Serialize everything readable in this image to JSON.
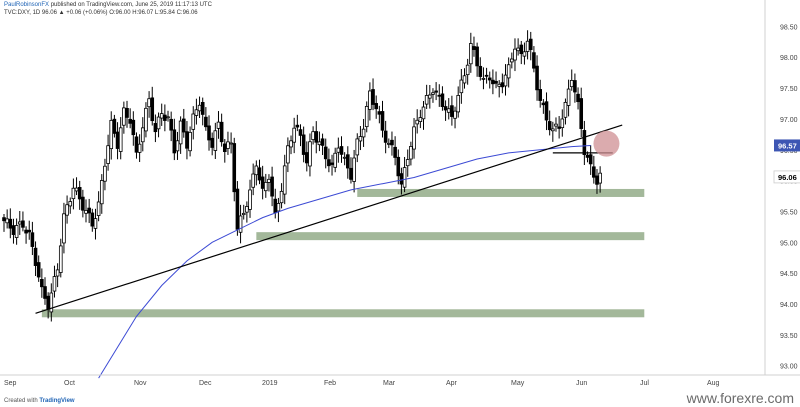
{
  "header": {
    "author": "PaulRobinsonFX",
    "published": "published on TradingView.com, June 25, 2019 11:17:13 UTC",
    "symbol_line": "TVC:DXY, 1D 96.06 ▲ +0.06 (+0.06%) O:96.00 H:96.07 L:95.84 C:96.06"
  },
  "footer": {
    "created_with": "Created with",
    "brand": "TradingView"
  },
  "watermark": "www.forexre.com",
  "colors": {
    "candle": "#000000",
    "zone": "#99b08f",
    "ma": "#3c4ad4",
    "trendline": "#000000",
    "circle": "#cf8f93",
    "last_label_bg": "#3d56b3",
    "last_label_text": "#ffffff"
  },
  "chart_data": {
    "type": "candlestick",
    "symbol": "TVC:DXY",
    "timeframe": "1D",
    "ylim": [
      92.85,
      98.7
    ],
    "yticks": [
      93.0,
      93.5,
      94.0,
      94.5,
      95.0,
      95.5,
      96.0,
      96.5,
      97.0,
      97.5,
      98.0,
      98.5
    ],
    "xticks": [
      "Sep",
      "Oct",
      "Nov",
      "Dec",
      "2019",
      "Feb",
      "Mar",
      "Apr",
      "May",
      "Jun",
      "Jul",
      "Aug"
    ],
    "price_labels": [
      {
        "value": 96.57,
        "label": "96.57"
      },
      {
        "value": 96.06,
        "label": "96.06"
      }
    ],
    "close_path": [
      [
        0,
        95.35
      ],
      [
        3,
        95.2
      ],
      [
        6,
        95.3
      ],
      [
        8,
        95.1
      ],
      [
        10,
        94.7
      ],
      [
        12,
        94.2
      ],
      [
        14,
        94.0
      ],
      [
        15,
        94.15
      ],
      [
        17,
        94.6
      ],
      [
        19,
        95.4
      ],
      [
        22,
        95.9
      ],
      [
        25,
        95.6
      ],
      [
        28,
        95.3
      ],
      [
        30,
        95.6
      ],
      [
        32,
        96.3
      ],
      [
        34,
        96.9
      ],
      [
        36,
        96.6
      ],
      [
        38,
        97.1
      ],
      [
        40,
        97.0
      ],
      [
        42,
        96.4
      ],
      [
        44,
        96.9
      ],
      [
        46,
        97.3
      ],
      [
        48,
        96.8
      ],
      [
        50,
        97.1
      ],
      [
        52,
        97.0
      ],
      [
        54,
        96.5
      ],
      [
        56,
        96.9
      ],
      [
        58,
        96.6
      ],
      [
        60,
        97.0
      ],
      [
        62,
        97.3
      ],
      [
        64,
        96.8
      ],
      [
        66,
        96.6
      ],
      [
        68,
        96.9
      ],
      [
        70,
        96.5
      ],
      [
        72,
        96.6
      ],
      [
        74,
        95.2
      ],
      [
        76,
        95.5
      ],
      [
        78,
        95.8
      ],
      [
        80,
        96.3
      ],
      [
        82,
        95.8
      ],
      [
        84,
        96.1
      ],
      [
        86,
        95.4
      ],
      [
        88,
        95.9
      ],
      [
        90,
        96.5
      ],
      [
        92,
        96.9
      ],
      [
        94,
        96.7
      ],
      [
        96,
        96.3
      ],
      [
        98,
        96.8
      ],
      [
        100,
        96.6
      ],
      [
        102,
        96.4
      ],
      [
        104,
        96.2
      ],
      [
        106,
        96.6
      ],
      [
        108,
        96.3
      ],
      [
        110,
        96.1
      ],
      [
        112,
        96.6
      ],
      [
        114,
        96.9
      ],
      [
        116,
        97.4
      ],
      [
        118,
        97.2
      ],
      [
        120,
        96.8
      ],
      [
        122,
        96.6
      ],
      [
        124,
        96.4
      ],
      [
        126,
        95.9
      ],
      [
        128,
        96.4
      ],
      [
        130,
        96.8
      ],
      [
        132,
        97.1
      ],
      [
        134,
        97.3
      ],
      [
        136,
        97.5
      ],
      [
        138,
        97.3
      ],
      [
        140,
        97.2
      ],
      [
        142,
        97.0
      ],
      [
        144,
        97.4
      ],
      [
        146,
        97.7
      ],
      [
        148,
        98.2
      ],
      [
        150,
        97.9
      ],
      [
        152,
        97.6
      ],
      [
        154,
        97.7
      ],
      [
        156,
        97.5
      ],
      [
        158,
        97.6
      ],
      [
        160,
        97.8
      ],
      [
        162,
        98.2
      ],
      [
        164,
        98.0
      ],
      [
        166,
        98.3
      ],
      [
        168,
        97.8
      ],
      [
        170,
        97.3
      ],
      [
        172,
        97.0
      ],
      [
        174,
        96.8
      ],
      [
        176,
        96.9
      ],
      [
        178,
        97.2
      ],
      [
        180,
        97.7
      ],
      [
        182,
        97.2
      ],
      [
        184,
        96.5
      ],
      [
        186,
        96.2
      ],
      [
        188,
        96.0
      ],
      [
        189,
        96.06
      ]
    ],
    "ma": [
      [
        30,
        92.8
      ],
      [
        36,
        93.3
      ],
      [
        42,
        93.8
      ],
      [
        50,
        94.3
      ],
      [
        58,
        94.7
      ],
      [
        66,
        95.0
      ],
      [
        74,
        95.2
      ],
      [
        82,
        95.4
      ],
      [
        90,
        95.55
      ],
      [
        100,
        95.7
      ],
      [
        110,
        95.85
      ],
      [
        120,
        95.95
      ],
      [
        130,
        96.05
      ],
      [
        140,
        96.2
      ],
      [
        150,
        96.35
      ],
      [
        160,
        96.45
      ],
      [
        170,
        96.5
      ],
      [
        180,
        96.55
      ],
      [
        186,
        96.57
      ]
    ],
    "trendline": [
      [
        10,
        93.85
      ],
      [
        196,
        96.9
      ]
    ],
    "zones": [
      {
        "x0": 12,
        "x1": 203,
        "y": 93.85
      },
      {
        "x0": 80,
        "x1": 203,
        "y": 95.1
      },
      {
        "x0": 112,
        "x1": 203,
        "y": 95.8
      }
    ],
    "hline": {
      "x0": 174,
      "x1": 193,
      "y": 96.45
    },
    "circle": {
      "x": 191,
      "y": 96.6
    },
    "x_range": [
      0,
      240
    ]
  }
}
